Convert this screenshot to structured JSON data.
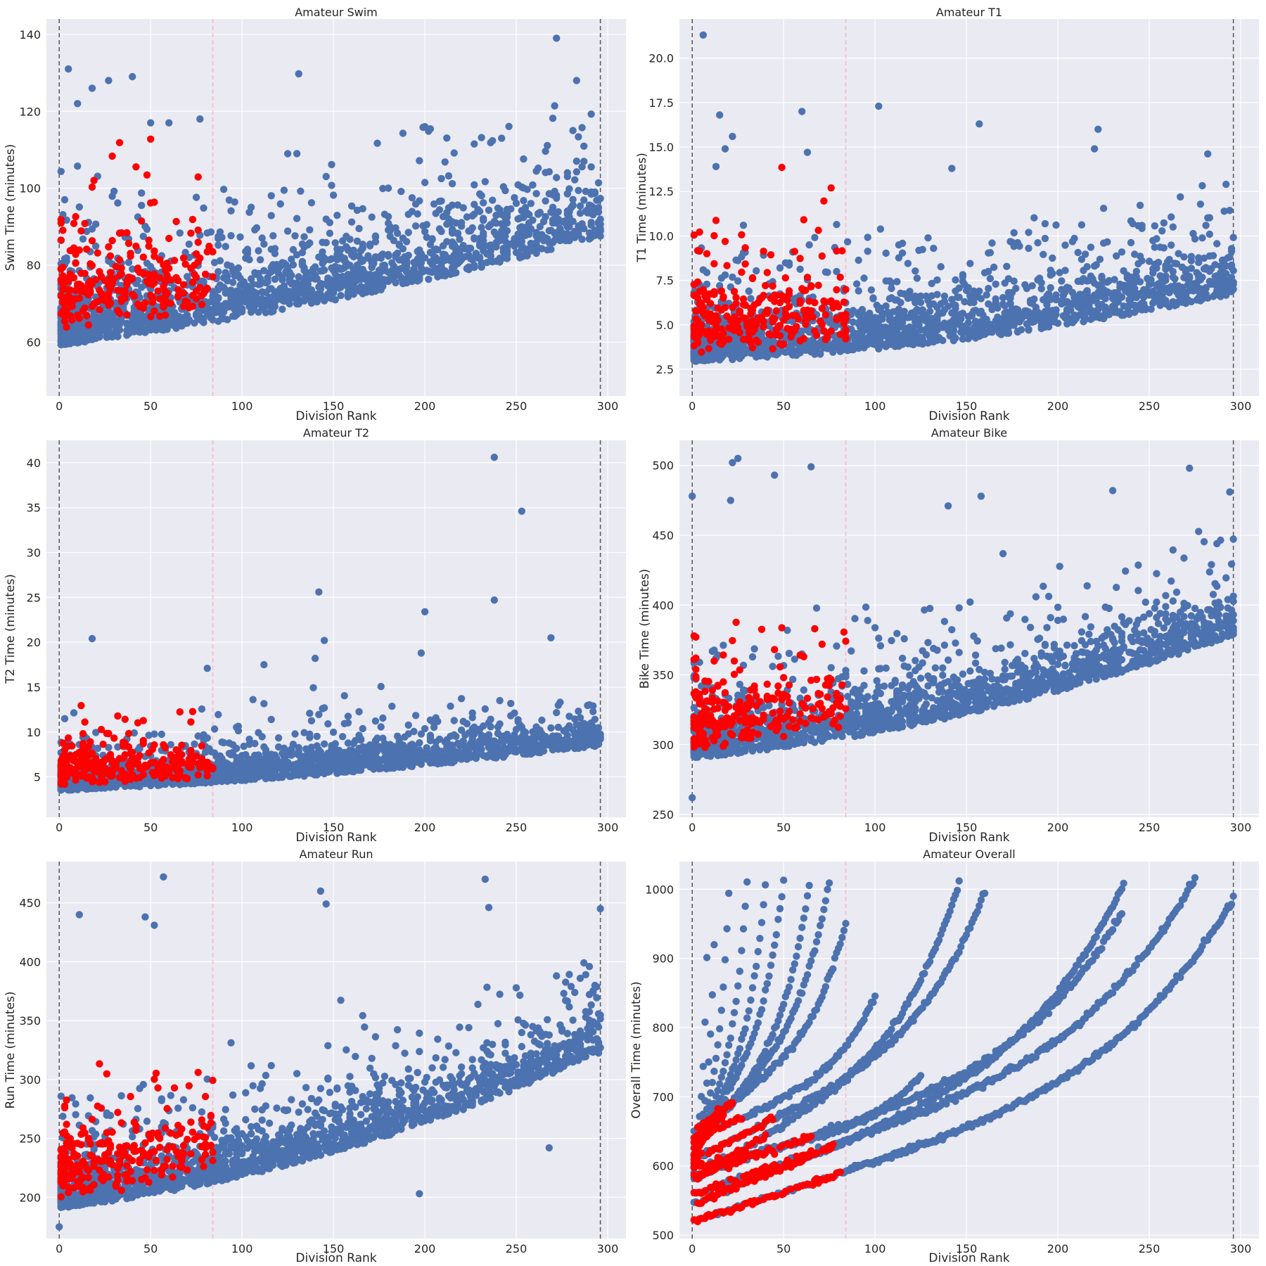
{
  "figure": {
    "background": "#ffffff",
    "plot_background": "#eaeaf2",
    "grid_color": "#ffffff",
    "series_colors": {
      "non_qualifier": "#4c72b0",
      "qualifier": "#ff0000"
    },
    "vline_colors": {
      "range": "#555555",
      "cutoff": "#ffb6c1"
    }
  },
  "chart_data": [
    {
      "id": "swim",
      "type": "scatter",
      "title": "Amateur Swim",
      "xlabel": "Division Rank",
      "ylabel": "Swim Time (minutes)",
      "xlim": [
        -7,
        310
      ],
      "ylim": [
        46,
        144
      ],
      "xticks": [
        0,
        50,
        100,
        150,
        200,
        250,
        300
      ],
      "yticks": [
        60,
        80,
        100,
        120,
        140
      ],
      "ytick_labels": [
        "60",
        "80",
        "100",
        "120",
        "140"
      ],
      "vlines": [
        {
          "x": 0,
          "kind": "range"
        },
        {
          "x": 296,
          "kind": "range"
        },
        {
          "x": 84,
          "kind": "cutoff"
        }
      ],
      "cutoff_rank": 84,
      "max_rank": 296,
      "trend": {
        "base": 62,
        "slope": 0.06,
        "curve": 0.00012,
        "spread": 7
      },
      "outliers": [
        [
          5,
          131
        ],
        [
          18,
          126
        ],
        [
          27,
          128
        ],
        [
          40,
          129
        ],
        [
          10,
          122
        ],
        [
          272,
          139
        ],
        [
          283,
          128
        ],
        [
          281,
          115
        ],
        [
          287,
          107
        ],
        [
          200,
          116
        ],
        [
          60,
          117
        ],
        [
          77,
          118
        ],
        [
          130,
          109
        ],
        [
          50,
          117
        ]
      ],
      "point_count": 2000
    },
    {
      "id": "t1",
      "type": "scatter",
      "title": "Amateur T1",
      "xlabel": "Division Rank",
      "ylabel": "T1 Time (minutes)",
      "xlim": [
        -7,
        310
      ],
      "ylim": [
        1.0,
        22.2
      ],
      "xticks": [
        0,
        50,
        100,
        150,
        200,
        250,
        300
      ],
      "yticks": [
        2.5,
        5.0,
        7.5,
        10.0,
        12.5,
        15.0,
        17.5,
        20.0
      ],
      "ytick_labels": [
        "2.5",
        "5.0",
        "7.5",
        "10.0",
        "12.5",
        "15.0",
        "17.5",
        "20.0"
      ],
      "vlines": [
        {
          "x": 0,
          "kind": "range"
        },
        {
          "x": 296,
          "kind": "range"
        },
        {
          "x": 84,
          "kind": "cutoff"
        }
      ],
      "cutoff_rank": 84,
      "max_rank": 296,
      "trend": {
        "base": 3.4,
        "slope": 0.004,
        "curve": 3e-05,
        "spread": 1.2
      },
      "outliers": [
        [
          6,
          21.3
        ],
        [
          15,
          16.8
        ],
        [
          22,
          15.6
        ],
        [
          18,
          14.9
        ],
        [
          60,
          17.0
        ],
        [
          102,
          17.3
        ],
        [
          157,
          16.3
        ],
        [
          222,
          16.0
        ],
        [
          220,
          14.9
        ],
        [
          13,
          13.9
        ],
        [
          63,
          14.7
        ],
        [
          142,
          13.8
        ]
      ],
      "point_count": 2000
    },
    {
      "id": "t2",
      "type": "scatter",
      "title": "Amateur T2",
      "xlabel": "Division Rank",
      "ylabel": "T2 Time (minutes)",
      "xlim": [
        -7,
        310
      ],
      "ylim": [
        0.5,
        42.5
      ],
      "xticks": [
        0,
        50,
        100,
        150,
        200,
        250,
        300
      ],
      "yticks": [
        5,
        10,
        15,
        20,
        25,
        30,
        35,
        40
      ],
      "ytick_labels": [
        "5",
        "10",
        "15",
        "20",
        "25",
        "30",
        "35",
        "40"
      ],
      "vlines": [
        {
          "x": 0,
          "kind": "range"
        },
        {
          "x": 296,
          "kind": "range"
        },
        {
          "x": 84,
          "kind": "cutoff"
        }
      ],
      "cutoff_rank": 84,
      "max_rank": 296,
      "trend": {
        "base": 4.0,
        "slope": 0.008,
        "curve": 3e-05,
        "spread": 1.3
      },
      "outliers": [
        [
          238,
          40.6
        ],
        [
          253,
          34.6
        ],
        [
          142,
          25.6
        ],
        [
          200,
          23.4
        ],
        [
          18,
          20.4
        ],
        [
          238,
          24.7
        ],
        [
          145,
          20.2
        ],
        [
          269,
          20.5
        ],
        [
          198,
          18.8
        ],
        [
          140,
          18.2
        ],
        [
          81,
          17.1
        ],
        [
          112,
          17.5
        ]
      ],
      "point_count": 2000
    },
    {
      "id": "bike",
      "type": "scatter",
      "title": "Amateur Bike",
      "xlabel": "Division Rank",
      "ylabel": "Bike Time (minutes)",
      "xlim": [
        -7,
        310
      ],
      "ylim": [
        248,
        518
      ],
      "xticks": [
        0,
        50,
        100,
        150,
        200,
        250,
        300
      ],
      "yticks": [
        250,
        300,
        350,
        400,
        450,
        500
      ],
      "ytick_labels": [
        "250",
        "300",
        "350",
        "400",
        "450",
        "500"
      ],
      "vlines": [
        {
          "x": 0,
          "kind": "range"
        },
        {
          "x": 296,
          "kind": "range"
        },
        {
          "x": 84,
          "kind": "cutoff"
        }
      ],
      "cutoff_rank": 84,
      "max_rank": 296,
      "trend": {
        "base": 296,
        "slope": 0.12,
        "curve": 0.0006,
        "spread": 14
      },
      "outliers": [
        [
          25,
          505
        ],
        [
          22,
          502
        ],
        [
          65,
          499
        ],
        [
          45,
          493
        ],
        [
          272,
          498
        ],
        [
          158,
          478
        ],
        [
          230,
          482
        ],
        [
          294,
          481
        ],
        [
          0,
          478
        ],
        [
          21,
          475
        ],
        [
          140,
          471
        ],
        [
          0,
          262
        ]
      ],
      "point_count": 2000
    },
    {
      "id": "run",
      "type": "scatter",
      "title": "Amateur Run",
      "xlabel": "Division Rank",
      "ylabel": "Run Time (minutes)",
      "xlim": [
        -7,
        310
      ],
      "ylim": [
        165,
        485
      ],
      "xticks": [
        0,
        50,
        100,
        150,
        200,
        250,
        300
      ],
      "yticks": [
        200,
        250,
        300,
        350,
        400,
        450
      ],
      "ytick_labels": [
        "200",
        "250",
        "300",
        "350",
        "400",
        "450"
      ],
      "vlines": [
        {
          "x": 0,
          "kind": "range"
        },
        {
          "x": 296,
          "kind": "range"
        },
        {
          "x": 84,
          "kind": "cutoff"
        }
      ],
      "cutoff_rank": 84,
      "max_rank": 296,
      "trend": {
        "base": 198,
        "slope": 0.18,
        "curve": 0.0009,
        "spread": 18
      },
      "outliers": [
        [
          57,
          472
        ],
        [
          233,
          470
        ],
        [
          143,
          460
        ],
        [
          146,
          449
        ],
        [
          296,
          445
        ],
        [
          11,
          440
        ],
        [
          47,
          438
        ],
        [
          235,
          446
        ],
        [
          52,
          431
        ],
        [
          268,
          242
        ],
        [
          197,
          203
        ],
        [
          0,
          175
        ]
      ],
      "point_count": 2000
    },
    {
      "id": "overall",
      "type": "scatter",
      "title": "Amateur Overall",
      "xlabel": "Division Rank",
      "ylabel": "Overall Time (minutes)",
      "xlim": [
        -7,
        310
      ],
      "ylim": [
        495,
        1040
      ],
      "xticks": [
        0,
        50,
        100,
        150,
        200,
        250,
        300
      ],
      "yticks": [
        500,
        600,
        700,
        800,
        900,
        1000
      ],
      "ytick_labels": [
        "500",
        "600",
        "700",
        "800",
        "900",
        "1000"
      ],
      "vlines": [
        {
          "x": 0,
          "kind": "range"
        },
        {
          "x": 296,
          "kind": "range"
        },
        {
          "x": 84,
          "kind": "cutoff"
        }
      ],
      "cutoff_rank": 84,
      "max_rank": 296,
      "divisions": [
        {
          "n": 296,
          "lo": 520,
          "hi": 985
        },
        {
          "n": 275,
          "lo": 560,
          "hi": 1015
        },
        {
          "n": 236,
          "lo": 545,
          "hi": 1008
        },
        {
          "n": 235,
          "lo": 585,
          "hi": 965
        },
        {
          "n": 160,
          "lo": 610,
          "hi": 995
        },
        {
          "n": 146,
          "lo": 580,
          "hi": 1008
        },
        {
          "n": 125,
          "lo": 600,
          "hi": 730
        },
        {
          "n": 100,
          "lo": 640,
          "hi": 845
        },
        {
          "n": 84,
          "lo": 650,
          "hi": 950
        },
        {
          "n": 75,
          "lo": 635,
          "hi": 1010
        },
        {
          "n": 64,
          "lo": 620,
          "hi": 1005
        },
        {
          "n": 50,
          "lo": 625,
          "hi": 1012
        },
        {
          "n": 40,
          "lo": 615,
          "hi": 1005
        },
        {
          "n": 30,
          "lo": 605,
          "hi": 1010
        },
        {
          "n": 20,
          "lo": 600,
          "hi": 995
        },
        {
          "n": 12,
          "lo": 590,
          "hi": 920
        },
        {
          "n": 8,
          "lo": 600,
          "hi": 900
        }
      ]
    }
  ]
}
